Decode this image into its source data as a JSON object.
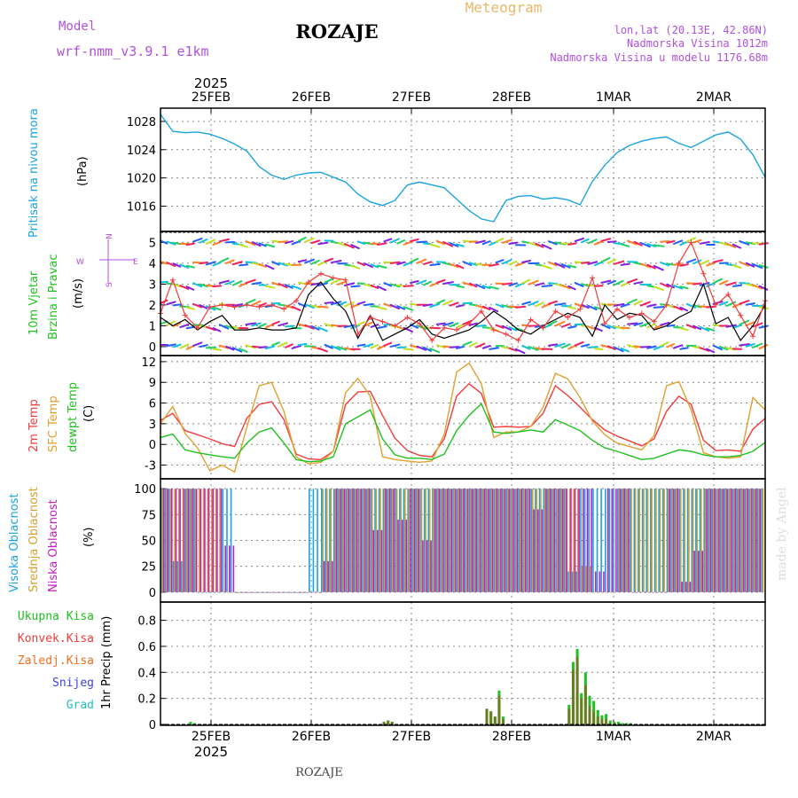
{
  "header": {
    "model_label": "Model",
    "model_name": "wrf-nmm_v3.9.1 e1km",
    "title": "ROZAJE",
    "meteogram": "Meteogram",
    "lonlat": "lon,lat (20.13E, 42.86N)",
    "elevation": "Nadmorska Visina 1012m",
    "model_elevation": "Nadmorska Visina u modelu 1176.68m",
    "watermark": "made by Angel",
    "footer": "ROZAJE",
    "year_top": "2025",
    "year_bottom": "2025"
  },
  "colors": {
    "pressure": "#1ba3e0",
    "wind_obs": "#000000",
    "wind_gust": "#f03c3c",
    "temp2m": "#f03c3c",
    "sfc_temp": "#e0a030",
    "dewpt": "#20c020",
    "cloud_high": "#1ba3e0",
    "cloud_mid": "#d4a030",
    "cloud_low": "#c020c0",
    "precip_total": "#20c020",
    "precip_conv": "#f03c3c",
    "precip_frz": "#f07020",
    "precip_snow": "#4040e0",
    "precip_grad": "#20c0c0"
  },
  "chart_data": [
    {
      "type": "line",
      "panel": "pressure",
      "ylabel_1": "Pritisak na nivou mora",
      "ylabel_2": "(hPa)",
      "y_ticks": [
        "1028",
        "1024",
        "1020",
        "1016"
      ],
      "ylim": [
        1012.8,
        1029.5
      ],
      "x_ticks": [
        "25FEB",
        "26FEB",
        "27FEB",
        "28FEB",
        "1MAR",
        "2MAR"
      ],
      "x": [
        0,
        3,
        6,
        9,
        12,
        15,
        18,
        21,
        24,
        27,
        30,
        33,
        36,
        39,
        42,
        45,
        48,
        51,
        54,
        57,
        60,
        63,
        66,
        69,
        72,
        75,
        78,
        81,
        84,
        87,
        90,
        93,
        96,
        99,
        102,
        105,
        108,
        111,
        114,
        117,
        120,
        123,
        126,
        129,
        132,
        135,
        138,
        141,
        144,
        147
      ],
      "series": [
        {
          "values": [
            1029,
            1026.6,
            1026.4,
            1026.5,
            1026.2,
            1025.6,
            1024.8,
            1023.8,
            1021.6,
            1020.4,
            1019.8,
            1020.4,
            1020.7,
            1020.8,
            1020.1,
            1019.4,
            1017.7,
            1016.6,
            1016.1,
            1016.8,
            1019.0,
            1019.4,
            1019.0,
            1018.6,
            1017.0,
            1015.4,
            1014.2,
            1013.8,
            1016.8,
            1017.4,
            1017.5,
            1017.0,
            1017.2,
            1016.9,
            1016.2,
            1019.5,
            1021.8,
            1023.6,
            1024.6,
            1025.2,
            1025.6,
            1025.8,
            1024.9,
            1024.3,
            1025.2,
            1026.1,
            1026.5,
            1025.5,
            1023.3,
            1020.1
          ]
        }
      ]
    },
    {
      "type": "line",
      "panel": "wind",
      "ylabel_1": "10m Vjetar",
      "ylabel_2": "Brzina i Pravac",
      "ylabel_3": "(m/s)",
      "compass": {
        "n": "N",
        "s": "S",
        "e": "E",
        "w": "W"
      },
      "y_ticks": [
        "5",
        "4",
        "3",
        "2",
        "1",
        "0"
      ],
      "ylim": [
        -0.3,
        5.4
      ],
      "x": [
        0,
        3,
        6,
        9,
        12,
        15,
        18,
        21,
        24,
        27,
        30,
        33,
        36,
        39,
        42,
        45,
        48,
        51,
        54,
        57,
        60,
        63,
        66,
        69,
        72,
        75,
        78,
        81,
        84,
        87,
        90,
        93,
        96,
        99,
        102,
        105,
        108,
        111,
        114,
        117,
        120,
        123,
        126,
        129,
        132,
        135,
        138,
        141,
        144,
        147
      ],
      "series": [
        {
          "values": [
            1.4,
            1.0,
            1.3,
            0.8,
            1.2,
            1.5,
            0.8,
            0.8,
            0.9,
            0.8,
            0.8,
            0.9,
            2.5,
            3.1,
            2.3,
            1.7,
            0.4,
            1.5,
            0.3,
            0.6,
            0.9,
            1.3,
            0.6,
            0.4,
            0.6,
            0.8,
            1.2,
            1.7,
            1.3,
            0.8,
            0.6,
            1.0,
            1.3,
            1.6,
            1.4,
            0.5,
            2.0,
            1.3,
            1.6,
            1.5,
            0.8,
            1.0,
            1.4,
            1.7,
            3.0,
            1.1,
            1.4,
            0.3,
            1.0,
            2.0
          ]
        },
        {
          "values": [
            1.6,
            3.2,
            1.5,
            0.9,
            1.9,
            2.0,
            1.9,
            2.0,
            1.9,
            2.0,
            1.8,
            2.2,
            3.1,
            3.5,
            3.3,
            3.2,
            0.6,
            1.4,
            1.2,
            1.0,
            1.4,
            1.1,
            0.3,
            0.9,
            0.8,
            1.1,
            1.7,
            0.8,
            0.6,
            0.3,
            1.3,
            0.9,
            1.7,
            1.4,
            1.8,
            3.3,
            1.1,
            1.8,
            1.4,
            1.6,
            1.2,
            2.0,
            4.0,
            5.0,
            3.5,
            2.0,
            2.5,
            1.5,
            0.5,
            2.2
          ]
        }
      ]
    },
    {
      "type": "line",
      "panel": "temperature",
      "ylabel_1": "2m Temp",
      "ylabel_2": "SFC Temp",
      "ylabel_3": "dewpt Temp",
      "ylabel_4": "(C)",
      "y_ticks": [
        "12",
        "9",
        "6",
        "3",
        "0",
        "-3"
      ],
      "ylim": [
        -4.6,
        12.5
      ],
      "x": [
        0,
        3,
        6,
        9,
        12,
        15,
        18,
        21,
        24,
        27,
        30,
        33,
        36,
        39,
        42,
        45,
        48,
        51,
        54,
        57,
        60,
        63,
        66,
        69,
        72,
        75,
        78,
        81,
        84,
        87,
        90,
        93,
        96,
        99,
        102,
        105,
        108,
        111,
        114,
        117,
        120,
        123,
        126,
        129,
        132,
        135,
        138,
        141,
        144,
        147
      ],
      "series": [
        {
          "name": "2m Temp",
          "values": [
            3.5,
            4.5,
            2.0,
            1.4,
            0.8,
            0.1,
            -0.3,
            3.8,
            5.8,
            6.2,
            3.6,
            -1.4,
            -2.1,
            -2.2,
            -1.0,
            5.8,
            7.6,
            7.7,
            4.2,
            0.9,
            -0.9,
            -1.6,
            -1.8,
            0.8,
            7.0,
            8.8,
            7.4,
            2.5,
            2.6,
            2.5,
            2.6,
            4.5,
            8.5,
            7.1,
            5.4,
            3.6,
            2.1,
            1.2,
            0.5,
            -0.2,
            0.8,
            4.8,
            7.0,
            5.8,
            0.6,
            -0.9,
            -0.8,
            -1.0,
            2.2,
            3.8
          ]
        },
        {
          "name": "SFC Temp",
          "values": [
            3.0,
            5.5,
            1.6,
            -0.5,
            -3.8,
            -3.0,
            -4.0,
            2.5,
            8.5,
            9.0,
            4.8,
            -1.8,
            -2.8,
            -2.6,
            -1.0,
            7.5,
            9.6,
            7.0,
            -1.8,
            -2.2,
            -2.4,
            -2.6,
            -2.4,
            1.5,
            10.5,
            11.8,
            8.8,
            1.0,
            1.8,
            1.8,
            2.6,
            5.4,
            10.3,
            9.5,
            6.8,
            3.4,
            1.4,
            0.2,
            -0.3,
            -0.8,
            1.3,
            8.5,
            9.1,
            5.0,
            -1.2,
            -1.8,
            -2.0,
            -1.8,
            6.8,
            5.0
          ]
        },
        {
          "name": "dewpt Temp",
          "values": [
            1.0,
            1.5,
            -0.8,
            -1.2,
            -1.5,
            -1.8,
            -2.0,
            0.2,
            1.8,
            2.4,
            0.2,
            -2.2,
            -2.5,
            -2.4,
            -1.8,
            3.0,
            4.0,
            5.0,
            0.8,
            -1.5,
            -2.0,
            -2.0,
            -2.2,
            -1.4,
            2.0,
            4.2,
            5.9,
            1.8,
            1.6,
            1.8,
            2.1,
            1.8,
            3.6,
            2.8,
            2.0,
            0.6,
            -0.5,
            -1.0,
            -1.6,
            -2.2,
            -2.0,
            -1.4,
            -0.8,
            -1.0,
            -1.5,
            -1.8,
            -1.8,
            -1.6,
            -1.0,
            0.3
          ]
        }
      ]
    },
    {
      "type": "bar",
      "panel": "cloud",
      "ylabel_1": "Visoka Oblacnost",
      "ylabel_2": "Srednja Oblacnost",
      "ylabel_3": "Niska Oblacnost",
      "ylabel_4": "(%)",
      "y_ticks": [
        "100",
        "75",
        "50",
        "25",
        "0"
      ],
      "ylim": [
        -7,
        107
      ],
      "x": [
        0,
        3,
        6,
        9,
        12,
        15,
        18,
        21,
        24,
        27,
        30,
        33,
        36,
        39,
        42,
        45,
        48,
        51,
        54,
        57,
        60,
        63,
        66,
        69,
        72,
        75,
        78,
        81,
        84,
        87,
        90,
        93,
        96,
        99,
        102,
        105,
        108,
        111,
        114,
        117,
        120,
        123,
        126,
        129,
        132,
        135,
        138,
        141,
        144,
        147
      ],
      "series": [
        {
          "name": "Visoka Oblacnost",
          "values": [
            100,
            30,
            100,
            0,
            0,
            100,
            0,
            0,
            0,
            0,
            0,
            0,
            100,
            100,
            100,
            100,
            100,
            100,
            100,
            100,
            100,
            100,
            100,
            100,
            100,
            100,
            100,
            100,
            100,
            100,
            100,
            100,
            100,
            20,
            100,
            100,
            100,
            100,
            100,
            100,
            100,
            100,
            100,
            100,
            100,
            100,
            100,
            100,
            100,
            100
          ]
        },
        {
          "name": "Srednja Oblacnost",
          "values": [
            100,
            100,
            100,
            100,
            100,
            0,
            0,
            0,
            0,
            0,
            0,
            0,
            0,
            100,
            100,
            100,
            100,
            100,
            100,
            100,
            100,
            100,
            100,
            100,
            100,
            100,
            100,
            100,
            100,
            100,
            100,
            100,
            100,
            100,
            25,
            0,
            0,
            100,
            100,
            100,
            100,
            100,
            100,
            100,
            100,
            100,
            100,
            100,
            100,
            100
          ]
        },
        {
          "name": "Niska Oblacnost",
          "values": [
            100,
            100,
            100,
            100,
            100,
            45,
            0,
            0,
            0,
            0,
            0,
            0,
            0,
            30,
            100,
            100,
            100,
            60,
            100,
            70,
            100,
            50,
            100,
            100,
            100,
            100,
            100,
            100,
            100,
            100,
            80,
            100,
            100,
            100,
            100,
            20,
            100,
            100,
            0,
            0,
            0,
            100,
            10,
            40,
            100,
            100,
            100,
            100,
            100,
            100
          ]
        }
      ]
    },
    {
      "type": "bar",
      "panel": "precip",
      "legend_total": "Ukupna Kisa",
      "legend_conv": "Konvek.Kisa",
      "legend_frz": "Zaledj.Kisa",
      "legend_snow": "Snijeg",
      "legend_grad": "Grad",
      "ylabel": "1hr Precip (mm)",
      "y_ticks": [
        "0.8",
        "0.6",
        "0.4",
        "0.2",
        "0"
      ],
      "ylim": [
        0,
        0.92
      ],
      "x": [
        7,
        8,
        54,
        55,
        56,
        79,
        80,
        81,
        82,
        83,
        99,
        100,
        101,
        102,
        103,
        104,
        105,
        106,
        107,
        108,
        109,
        110,
        111,
        112,
        113,
        114
      ],
      "series": [
        {
          "name": "Ukupna Kisa",
          "values": [
            0.02,
            0.01,
            0.02,
            0.03,
            0.02,
            0.12,
            0.1,
            0.06,
            0.26,
            0.06,
            0.15,
            0.48,
            0.58,
            0.24,
            0.4,
            0.22,
            0.18,
            0.11,
            0.07,
            0.08,
            0.03,
            0.02,
            0.02,
            0.01,
            0.01,
            0.01
          ]
        },
        {
          "name": "Konvek.Kisa",
          "values": [
            0.0,
            0.0,
            0.02,
            0.03,
            0.02,
            0.12,
            0.1,
            0.06,
            0.22,
            0.04,
            0.12,
            0.42,
            0.52,
            0.2,
            0.3,
            0.14,
            0.1,
            0.06,
            0.04,
            0.04,
            0.01,
            0.01,
            0.0,
            0.0,
            0.0,
            0.0
          ]
        }
      ]
    }
  ]
}
